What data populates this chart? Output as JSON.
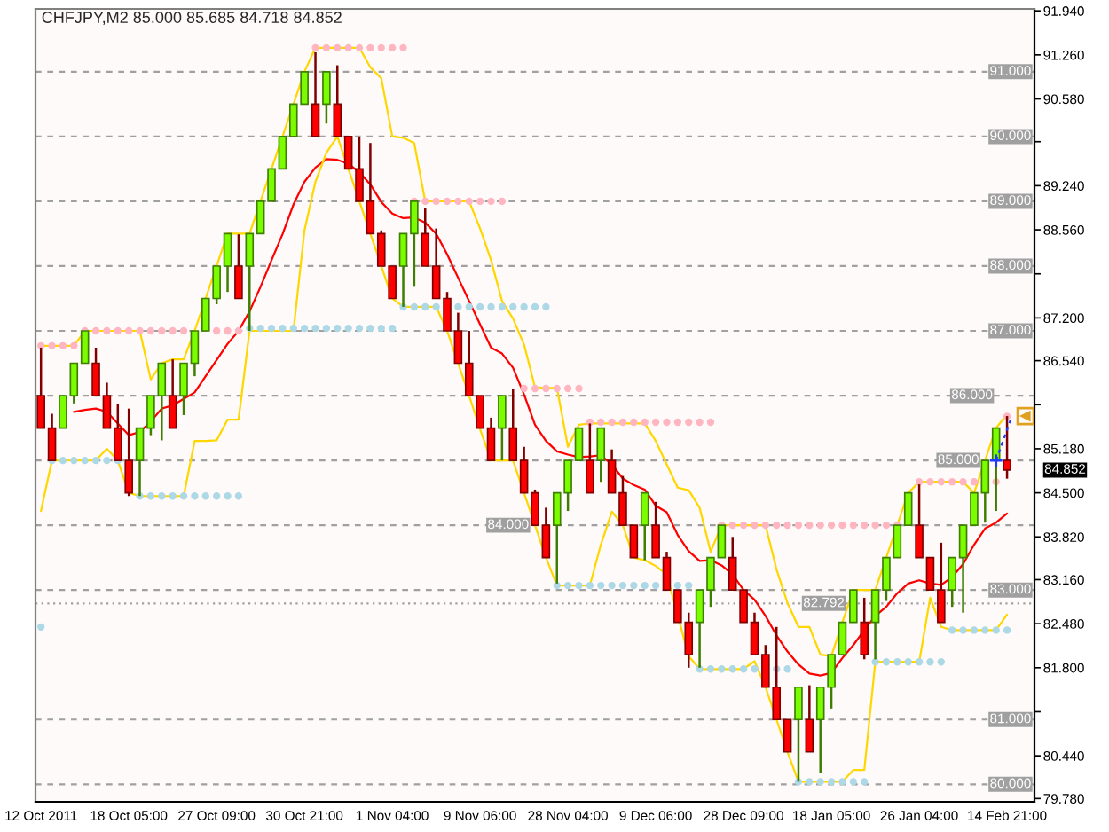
{
  "chart_data": {
    "type": "candlestick",
    "title": "CHFJPY,M2 85.000 85.685 84.718 84.852",
    "categories": [
      "12 Oct 2011",
      null,
      null,
      null,
      null,
      null,
      null,
      null,
      "18 Oct 05:00",
      null,
      null,
      null,
      null,
      null,
      null,
      null,
      "27 Oct 09:00",
      null,
      null,
      null,
      null,
      null,
      null,
      null,
      "30 Oct 21:00",
      null,
      null,
      null,
      null,
      null,
      null,
      null,
      "1 Nov 04:00",
      null,
      null,
      null,
      null,
      null,
      null,
      null,
      "9 Nov 06:00",
      null,
      null,
      null,
      null,
      null,
      null,
      null,
      "28 Nov 04:00",
      null,
      null,
      null,
      null,
      null,
      null,
      null,
      "9 Dec 06:00",
      null,
      null,
      null,
      null,
      null,
      null,
      null,
      "28 Dec 09:00",
      null,
      null,
      null,
      null,
      null,
      null,
      null,
      "18 Jan 05:00",
      null,
      null,
      null,
      null,
      null,
      null,
      null,
      "26 Jan 04:00",
      null,
      null,
      null,
      null,
      null,
      null,
      null,
      "14 Feb 21:00"
    ],
    "ohlc": [
      [
        86.0,
        86.74,
        85.5,
        85.5
      ],
      [
        85.5,
        85.72,
        85.0,
        85.0
      ],
      [
        85.5,
        86.0,
        85.5,
        86.0
      ],
      [
        86.0,
        86.5,
        85.88,
        86.5
      ],
      [
        86.5,
        87.0,
        86.5,
        87.0
      ],
      [
        86.5,
        86.74,
        86.0,
        86.0
      ],
      [
        86.0,
        86.2,
        85.5,
        85.5
      ],
      [
        85.5,
        85.87,
        85.0,
        85.0
      ],
      [
        85.0,
        85.8,
        84.45,
        84.5
      ],
      [
        85.0,
        85.5,
        84.45,
        85.5
      ],
      [
        85.5,
        86.0,
        85.39,
        86.0
      ],
      [
        86.0,
        86.5,
        85.31,
        86.5
      ],
      [
        86.0,
        86.56,
        85.5,
        85.5
      ],
      [
        86.0,
        86.5,
        85.7,
        86.5
      ],
      [
        86.5,
        87.0,
        86.3,
        87.0
      ],
      [
        87.0,
        87.5,
        87.0,
        87.5
      ],
      [
        87.5,
        88.0,
        87.41,
        88.0
      ],
      [
        88.0,
        88.5,
        87.6,
        88.5
      ],
      [
        88.0,
        88.49,
        87.5,
        87.5
      ],
      [
        88.0,
        88.5,
        87.0,
        88.5
      ],
      [
        88.5,
        89.0,
        88.5,
        89.0
      ],
      [
        89.0,
        89.5,
        89.0,
        89.5
      ],
      [
        89.5,
        90.0,
        89.5,
        90.0
      ],
      [
        90.0,
        90.5,
        90.0,
        90.5
      ],
      [
        90.5,
        91.0,
        90.5,
        91.0
      ],
      [
        90.5,
        91.3,
        90.0,
        90.0
      ],
      [
        90.5,
        91.0,
        90.2,
        91.0
      ],
      [
        90.5,
        91.1,
        90.0,
        90.0
      ],
      [
        90.0,
        90.0,
        89.5,
        89.5
      ],
      [
        89.5,
        90.0,
        89.0,
        89.0
      ],
      [
        89.0,
        89.9,
        88.5,
        88.5
      ],
      [
        88.5,
        88.55,
        88.0,
        88.0
      ],
      [
        88.0,
        88.0,
        87.5,
        87.5
      ],
      [
        88.0,
        88.5,
        87.37,
        88.5
      ],
      [
        88.5,
        89.0,
        87.68,
        89.0
      ],
      [
        88.5,
        88.9,
        88.0,
        88.0
      ],
      [
        88.0,
        88.58,
        87.5,
        87.5
      ],
      [
        87.5,
        87.6,
        87.0,
        87.0
      ],
      [
        87.0,
        87.28,
        86.5,
        86.5
      ],
      [
        86.5,
        87.0,
        86.0,
        86.0
      ],
      [
        86.0,
        86.0,
        85.5,
        85.5
      ],
      [
        85.5,
        85.66,
        85.0,
        85.0
      ],
      [
        85.5,
        86.0,
        85.0,
        86.0
      ],
      [
        85.5,
        86.1,
        85.0,
        85.0
      ],
      [
        85.0,
        85.21,
        84.5,
        84.5
      ],
      [
        84.5,
        84.55,
        84.0,
        84.0
      ],
      [
        84.0,
        84.27,
        83.5,
        83.5
      ],
      [
        84.0,
        84.5,
        83.1,
        84.5
      ],
      [
        84.5,
        85.0,
        84.22,
        85.0
      ],
      [
        85.0,
        85.5,
        85.0,
        85.5
      ],
      [
        85.0,
        85.57,
        84.5,
        84.5
      ],
      [
        85.0,
        85.5,
        84.67,
        85.5
      ],
      [
        85.0,
        85.17,
        84.5,
        84.5
      ],
      [
        84.5,
        84.76,
        84.0,
        84.0
      ],
      [
        84.0,
        84.0,
        83.5,
        83.5
      ],
      [
        84.0,
        84.5,
        83.46,
        84.5
      ],
      [
        84.0,
        84.36,
        83.5,
        83.5
      ],
      [
        83.5,
        83.59,
        83.0,
        83.0
      ],
      [
        83.0,
        83.0,
        82.5,
        82.5
      ],
      [
        82.5,
        82.65,
        81.8,
        82.0
      ],
      [
        82.5,
        83.0,
        81.8,
        83.0
      ],
      [
        83.0,
        83.5,
        82.74,
        83.5
      ],
      [
        83.5,
        84.0,
        83.5,
        84.0
      ],
      [
        83.5,
        83.82,
        83.0,
        83.0
      ],
      [
        83.0,
        83.0,
        82.5,
        82.5
      ],
      [
        82.5,
        82.65,
        82.0,
        82.0
      ],
      [
        82.0,
        82.15,
        81.5,
        81.5
      ],
      [
        81.5,
        82.43,
        81.0,
        81.0
      ],
      [
        81.0,
        81.0,
        80.5,
        80.5
      ],
      [
        81.0,
        81.5,
        80.04,
        81.5
      ],
      [
        81.0,
        81.53,
        80.5,
        80.5
      ],
      [
        81.0,
        81.5,
        80.18,
        81.5
      ],
      [
        81.5,
        82.0,
        81.17,
        82.0
      ],
      [
        82.0,
        82.5,
        82.0,
        82.5
      ],
      [
        82.5,
        83.0,
        82.5,
        83.0
      ],
      [
        82.5,
        82.88,
        81.93,
        82.0
      ],
      [
        82.5,
        83.0,
        81.93,
        83.0
      ],
      [
        83.0,
        83.5,
        82.83,
        83.5
      ],
      [
        83.5,
        84.0,
        83.5,
        84.0
      ],
      [
        84.0,
        84.5,
        84.0,
        84.5
      ],
      [
        84.0,
        84.63,
        83.5,
        83.5
      ],
      [
        83.5,
        83.5,
        83.0,
        83.0
      ],
      [
        83.0,
        83.73,
        82.5,
        82.5
      ],
      [
        83.0,
        83.5,
        82.74,
        83.5
      ],
      [
        83.5,
        84.0,
        82.65,
        84.0
      ],
      [
        84.0,
        84.5,
        84.0,
        84.5
      ],
      [
        84.5,
        85.0,
        84.04,
        85.0
      ],
      [
        85.0,
        85.5,
        84.22,
        85.5
      ],
      [
        85.0,
        85.685,
        84.718,
        84.852
      ]
    ],
    "colors": [
      "#ff0000",
      "#ff0000",
      "#7cfc00",
      "#7cfc00",
      "#7cfc00",
      "#ff0000",
      "#ff0000",
      "#ff0000",
      "#ff0000",
      "#7cfc00",
      "#7cfc00",
      "#7cfc00",
      "#ff0000",
      "#7cfc00",
      "#7cfc00",
      "#7cfc00",
      "#7cfc00",
      "#7cfc00",
      "#ff0000",
      "#7cfc00",
      "#7cfc00",
      "#7cfc00",
      "#7cfc00",
      "#7cfc00",
      "#7cfc00",
      "#ff0000",
      "#7cfc00",
      "#ff0000",
      "#ff0000",
      "#ff0000",
      "#ff0000",
      "#ff0000",
      "#ff0000",
      "#7cfc00",
      "#7cfc00",
      "#ff0000",
      "#ff0000",
      "#ff0000",
      "#ff0000",
      "#ff0000",
      "#ff0000",
      "#ff0000",
      "#7cfc00",
      "#ff0000",
      "#ff0000",
      "#ff0000",
      "#ff0000",
      "#7cfc00",
      "#7cfc00",
      "#7cfc00",
      "#ff0000",
      "#7cfc00",
      "#ff0000",
      "#ff0000",
      "#ff0000",
      "#7cfc00",
      "#ff0000",
      "#ff0000",
      "#ff0000",
      "#ff0000",
      "#7cfc00",
      "#7cfc00",
      "#7cfc00",
      "#ff0000",
      "#ff0000",
      "#ff0000",
      "#ff0000",
      "#ff0000",
      "#ff0000",
      "#7cfc00",
      "#ff0000",
      "#7cfc00",
      "#7cfc00",
      "#7cfc00",
      "#7cfc00",
      "#ff0000",
      "#7cfc00",
      "#7cfc00",
      "#7cfc00",
      "#7cfc00",
      "#ff0000",
      "#ff0000",
      "#ff0000",
      "#7cfc00",
      "#7cfc00",
      "#7cfc00",
      "#7cfc00",
      "#7cfc00",
      "#ff0000"
    ],
    "series": [
      {
        "type": "line",
        "color": "#ff0000",
        "values": [
          null,
          null,
          null,
          85.75,
          85.78,
          85.8,
          85.75,
          85.57,
          85.39,
          85.44,
          85.6,
          85.8,
          85.85,
          85.95,
          86.05,
          86.3,
          86.55,
          86.8,
          87.0,
          87.3,
          87.68,
          88.09,
          88.49,
          88.95,
          89.3,
          89.52,
          89.65,
          89.64,
          89.58,
          89.45,
          89.26,
          88.99,
          88.81,
          88.74,
          88.75,
          88.67,
          88.5,
          88.18,
          87.82,
          87.46,
          87.1,
          86.74,
          86.65,
          86.43,
          86.02,
          85.55,
          85.3,
          85.14,
          85.09,
          85.05,
          85.06,
          85.08,
          84.94,
          84.72,
          84.62,
          84.55,
          84.3,
          84.2,
          83.85,
          83.6,
          83.45,
          83.46,
          83.38,
          83.24,
          83.0,
          82.85,
          82.6,
          82.3,
          82.05,
          81.85,
          81.71,
          81.68,
          81.72,
          81.95,
          82.15,
          82.38,
          82.6,
          82.74,
          82.95,
          83.1,
          83.15,
          83.1,
          83.08,
          83.2,
          83.4,
          83.7,
          83.95,
          84.04,
          84.18
        ]
      },
      {
        "type": "line",
        "color": "#ffd700",
        "values": [
          86.77,
          86.77,
          86.77,
          86.77,
          87.0,
          87.0,
          87.0,
          87.0,
          87.0,
          87.0,
          86.25,
          86.5,
          86.56,
          86.56,
          87.0,
          87.5,
          88.0,
          88.5,
          88.5,
          88.5,
          89.0,
          89.5,
          90.0,
          90.5,
          91.0,
          91.37,
          91.37,
          91.37,
          91.37,
          91.37,
          91.07,
          90.9,
          90.0,
          89.98,
          89.9,
          89.0,
          89.0,
          89.0,
          89.0,
          89.0,
          88.58,
          88.09,
          87.46,
          87.19,
          86.79,
          86.13,
          86.12,
          86.12,
          85.21,
          85.55,
          85.57,
          85.57,
          85.57,
          85.57,
          85.57,
          85.57,
          85.3,
          84.94,
          84.58,
          84.54,
          84.27,
          83.59,
          84.0,
          84.0,
          84.0,
          84.0,
          84.0,
          83.32,
          82.8,
          82.43,
          82.43,
          82.0,
          81.98,
          82.5,
          83.0,
          83.0,
          83.0,
          83.5,
          84.0,
          84.5,
          84.67,
          84.67,
          84.67,
          84.67,
          84.67,
          84.5,
          85.0,
          85.5,
          85.71
        ]
      },
      {
        "type": "line",
        "color": "#ffd700",
        "values": [
          84.22,
          85.0,
          85.0,
          85.0,
          85.0,
          85.0,
          85.18,
          85.0,
          84.5,
          84.45,
          84.45,
          84.45,
          84.45,
          84.45,
          85.3,
          85.3,
          85.31,
          85.63,
          85.63,
          87.0,
          87.0,
          87.0,
          87.0,
          87.0,
          88.55,
          89.3,
          89.75,
          90.0,
          89.5,
          89.0,
          88.5,
          88.0,
          87.5,
          87.37,
          87.37,
          87.37,
          87.37,
          87.0,
          86.5,
          86.0,
          85.48,
          85.0,
          85.0,
          85.0,
          84.5,
          84.0,
          83.5,
          83.07,
          83.07,
          83.07,
          83.07,
          83.7,
          84.21,
          84.0,
          83.5,
          83.46,
          83.37,
          83.24,
          null,
          81.98,
          81.78,
          81.78,
          81.78,
          81.78,
          81.78,
          81.9,
          81.5,
          81.0,
          80.5,
          80.04,
          80.04,
          80.04,
          80.04,
          80.04,
          80.22,
          80.22,
          81.89,
          81.89,
          81.89,
          81.89,
          81.89,
          82.88,
          82.43,
          82.38,
          82.38,
          82.38,
          82.38,
          82.38,
          82.62
        ]
      },
      {
        "type": "scatter",
        "color": "#ffb6c1",
        "marker": "circle",
        "values": [
          86.77,
          86.77,
          86.77,
          86.77,
          87.0,
          87.0,
          87.0,
          87.0,
          87.0,
          87.0,
          87.0,
          87.0,
          87.0,
          87.0,
          null,
          null,
          87.0,
          87.0,
          87.0,
          null,
          null,
          null,
          null,
          null,
          null,
          91.37,
          91.37,
          91.37,
          91.37,
          91.37,
          91.37,
          91.37,
          91.37,
          91.37,
          89.0,
          89.0,
          89.0,
          89.0,
          89.0,
          89.0,
          89.0,
          89.0,
          89.0,
          null,
          86.11,
          86.11,
          86.11,
          86.11,
          86.11,
          86.11,
          85.59,
          85.59,
          85.59,
          85.59,
          85.59,
          85.59,
          85.59,
          85.59,
          85.59,
          85.59,
          85.59,
          85.59,
          84.0,
          84.0,
          84.0,
          84.0,
          84.0,
          84.0,
          84.0,
          84.0,
          84.0,
          84.0,
          84.0,
          84.0,
          84.0,
          84.0,
          84.0,
          84.0,
          84.0,
          null,
          84.67,
          84.67,
          84.67,
          84.67,
          84.67,
          84.67,
          null,
          84.67,
          85.68
        ]
      },
      {
        "type": "scatter",
        "color": "#add8e6",
        "marker": "circle",
        "values": [
          82.43,
          85.0,
          85.0,
          85.0,
          85.0,
          85.0,
          85.0,
          85.0,
          null,
          84.45,
          84.45,
          84.45,
          84.45,
          84.45,
          84.45,
          84.45,
          84.45,
          84.45,
          84.45,
          87.04,
          87.04,
          87.04,
          87.04,
          87.04,
          87.04,
          87.04,
          87.04,
          87.04,
          87.04,
          87.04,
          87.04,
          87.04,
          87.04,
          87.37,
          87.37,
          87.37,
          87.37,
          null,
          87.37,
          87.37,
          87.37,
          87.37,
          87.37,
          87.37,
          87.37,
          87.37,
          87.37,
          83.07,
          83.07,
          83.07,
          83.07,
          83.07,
          83.07,
          83.07,
          83.07,
          83.07,
          83.07,
          null,
          83.07,
          83.07,
          81.78,
          81.78,
          81.78,
          81.78,
          81.78,
          81.78,
          null,
          81.78,
          81.78,
          80.04,
          80.04,
          80.04,
          80.04,
          80.04,
          80.04,
          80.04,
          81.89,
          81.89,
          81.89,
          81.89,
          81.89,
          81.89,
          81.89,
          82.38,
          82.38,
          82.38,
          82.38,
          82.38,
          82.38
        ]
      }
    ],
    "ylim": [
      79.73,
      91.97
    ],
    "yticks": [
      {
        "value": 91.94,
        "label": "91.940"
      },
      {
        "value": 91.26,
        "label": "91.260"
      },
      {
        "value": 90.58,
        "label": "90.580"
      },
      {
        "value": 89.92,
        "label": null
      },
      {
        "value": 89.24,
        "label": "89.240"
      },
      {
        "value": 88.56,
        "label": "88.560"
      },
      {
        "value": 87.88,
        "label": null
      },
      {
        "value": 87.2,
        "label": "87.200"
      },
      {
        "value": 86.54,
        "label": "86.540"
      },
      {
        "value": 85.86,
        "label": null
      },
      {
        "value": 85.18,
        "label": "85.180"
      },
      {
        "value": 84.5,
        "label": "84.500"
      },
      {
        "value": 83.82,
        "label": "83.820"
      },
      {
        "value": 83.16,
        "label": "83.160"
      },
      {
        "value": 82.48,
        "label": "82.480"
      },
      {
        "value": 81.8,
        "label": "81.800"
      },
      {
        "value": 81.12,
        "label": null
      },
      {
        "value": 80.44,
        "label": "80.440"
      },
      {
        "value": 79.78,
        "label": "79.780"
      }
    ],
    "ref_lines": [
      {
        "axis": "y",
        "value": 91.0,
        "label": "91.000",
        "color": "#a0a0a0",
        "line_style": "dashed"
      },
      {
        "axis": "y",
        "value": 90.0,
        "label": "90.000",
        "color": "#a0a0a0",
        "line_style": "dashed"
      },
      {
        "axis": "y",
        "value": 89.0,
        "label": "89.000",
        "color": "#a0a0a0",
        "line_style": "dashed"
      },
      {
        "axis": "y",
        "value": 88.0,
        "label": "88.000",
        "color": "#a0a0a0",
        "line_style": "dashed"
      },
      {
        "axis": "y",
        "value": 87.0,
        "label": "87.000",
        "color": "#a0a0a0",
        "line_style": "dashed"
      },
      {
        "axis": "y",
        "value": 86.0,
        "label": "86.000",
        "color": "#a0a0a0",
        "line_style": "dashed"
      },
      {
        "axis": "y",
        "value": 85.0,
        "label": "85.000",
        "color": "#a0a0a0",
        "line_style": "dashed"
      },
      {
        "axis": "y",
        "value": 84.0,
        "label": "84.000",
        "color": "#a0a0a0",
        "line_style": "dashed"
      },
      {
        "axis": "y",
        "value": 83.0,
        "label": "83.000",
        "color": "#a0a0a0",
        "line_style": "dashed"
      },
      {
        "axis": "y",
        "value": 82.792,
        "label": "82.792",
        "color": "#a0a0a0",
        "line_style": "dotted"
      },
      {
        "axis": "y",
        "value": 81.0,
        "label": "81.000",
        "color": "#a0a0a0",
        "line_style": "dashed"
      },
      {
        "axis": "y",
        "value": 80.0,
        "label": "80.000",
        "color": "#a0a0a0",
        "line_style": "dashed"
      }
    ],
    "annotations": [
      "84.852"
    ]
  }
}
